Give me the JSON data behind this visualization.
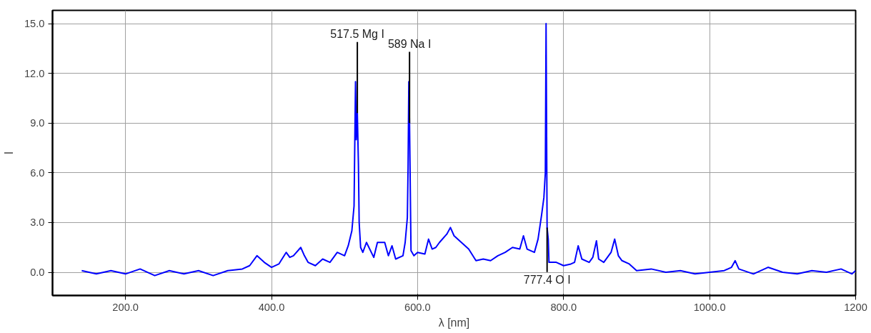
{
  "chart_data": {
    "type": "line",
    "xlabel": "λ [nm]",
    "ylabel": "I",
    "xlim": [
      100,
      1200
    ],
    "ylim": [
      -1.4,
      15.8
    ],
    "xticks": [
      {
        "value": 200,
        "label": "200.0"
      },
      {
        "value": 400,
        "label": "400.0"
      },
      {
        "value": 600,
        "label": "600.0"
      },
      {
        "value": 800,
        "label": "800.0"
      },
      {
        "value": 1000,
        "label": "1000.0"
      },
      {
        "value": 1200,
        "label": "1200"
      }
    ],
    "yticks": [
      {
        "value": 0,
        "label": "0.0"
      },
      {
        "value": 3,
        "label": "3.0"
      },
      {
        "value": 6,
        "label": "6.0"
      },
      {
        "value": 9,
        "label": "9.0"
      },
      {
        "value": 12,
        "label": "12.0"
      },
      {
        "value": 15,
        "label": "15.0"
      }
    ],
    "grid": true,
    "marker": "none",
    "line_style": "solid",
    "annotations": [
      {
        "text": "517.5 Mg I",
        "x": 517.5,
        "y": 9.6
      },
      {
        "text": "589 Na I",
        "x": 589,
        "y": 9.0
      },
      {
        "text": "777.4 O I",
        "x": 777.4,
        "y": 2.7
      }
    ],
    "x": [
      140,
      160,
      180,
      200,
      220,
      240,
      260,
      280,
      300,
      320,
      340,
      360,
      370,
      380,
      390,
      400,
      410,
      420,
      425,
      430,
      440,
      445,
      450,
      460,
      470,
      480,
      490,
      500,
      505,
      510,
      513,
      515,
      516,
      517.5,
      519,
      520,
      522,
      525,
      530,
      540,
      545,
      555,
      560,
      565,
      570,
      580,
      583,
      586,
      587,
      588,
      589,
      591,
      595,
      600,
      610,
      615,
      620,
      625,
      630,
      640,
      645,
      650,
      660,
      670,
      680,
      690,
      700,
      710,
      720,
      730,
      740,
      745,
      750,
      760,
      765,
      770,
      773,
      775,
      776,
      777.4,
      779,
      780,
      790,
      800,
      810,
      815,
      820,
      825,
      835,
      840,
      845,
      848,
      855,
      865,
      870,
      875,
      880,
      890,
      900,
      920,
      940,
      960,
      980,
      1000,
      1020,
      1030,
      1035,
      1040,
      1060,
      1080,
      1100,
      1120,
      1140,
      1160,
      1180,
      1195,
      1200
    ],
    "series": [
      {
        "color": "#0000ff",
        "values": [
          0.1,
          -0.1,
          0.1,
          -0.1,
          0.2,
          -0.2,
          0.1,
          -0.1,
          0.1,
          -0.2,
          0.1,
          0.2,
          0.4,
          1.0,
          0.6,
          0.3,
          0.5,
          1.2,
          0.9,
          1.0,
          1.5,
          1.0,
          0.6,
          0.4,
          0.8,
          0.6,
          1.2,
          1.0,
          1.6,
          2.5,
          4.0,
          11.5,
          8.0,
          9.6,
          6.5,
          3.0,
          1.5,
          1.2,
          1.8,
          0.9,
          1.8,
          1.8,
          1.0,
          1.6,
          0.8,
          1.0,
          1.8,
          3.3,
          6.3,
          11.5,
          9.0,
          1.3,
          1.0,
          1.2,
          1.1,
          2.0,
          1.4,
          1.5,
          1.8,
          2.3,
          2.7,
          2.2,
          1.8,
          1.4,
          0.7,
          0.8,
          0.7,
          1.0,
          1.2,
          1.5,
          1.4,
          2.2,
          1.4,
          1.2,
          2.0,
          3.5,
          4.5,
          6.0,
          15.0,
          2.7,
          2.0,
          0.6,
          0.6,
          0.4,
          0.5,
          0.6,
          1.6,
          0.8,
          0.6,
          0.9,
          1.9,
          0.8,
          0.6,
          1.2,
          2.0,
          1.0,
          0.7,
          0.5,
          0.1,
          0.2,
          0.0,
          0.1,
          -0.1,
          0.0,
          0.1,
          0.3,
          0.7,
          0.2,
          -0.1,
          0.3,
          0.0,
          -0.1,
          0.1,
          0.0,
          0.2,
          -0.1,
          0.1
        ]
      }
    ]
  }
}
